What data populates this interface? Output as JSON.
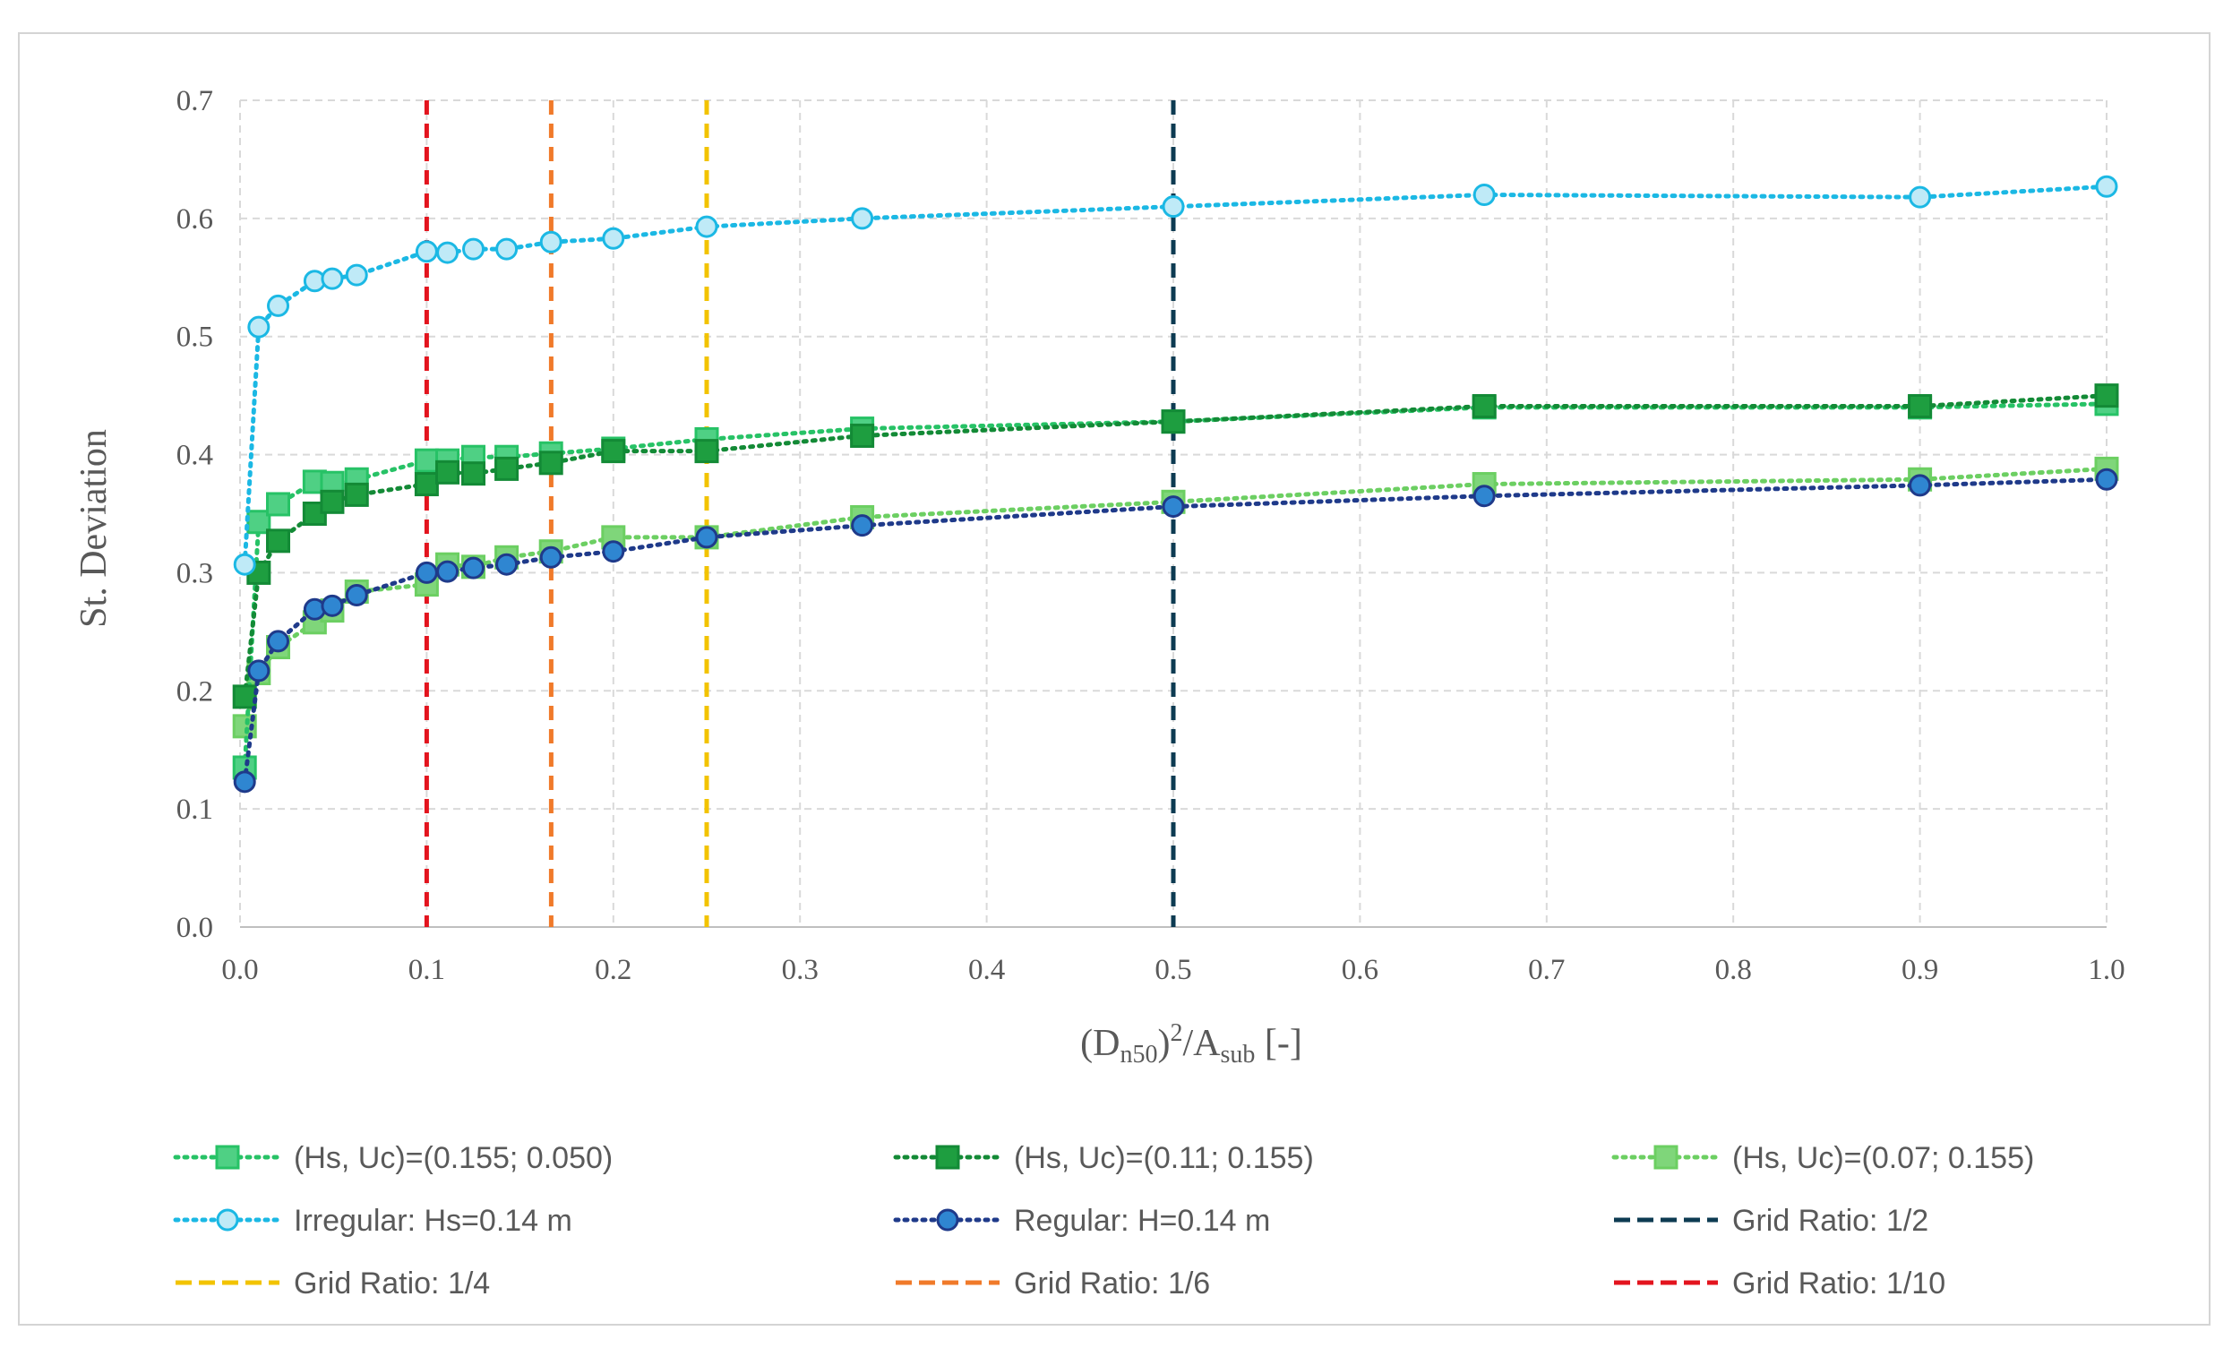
{
  "chart_data": {
    "type": "line",
    "title": "",
    "ylabel": "St. Deviation",
    "xlabel_parts": {
      "open": "(D",
      "sub1": "n50",
      "mid": ")",
      "sup": "2",
      "slash": "/A",
      "sub2": "sub",
      "end": " [-]"
    },
    "xlim": [
      0.0,
      1.0
    ],
    "ylim": [
      0.0,
      0.7
    ],
    "x_ticks": [
      "0.0",
      "0.1",
      "0.2",
      "0.3",
      "0.4",
      "0.5",
      "0.6",
      "0.7",
      "0.8",
      "0.9",
      "1.0"
    ],
    "y_ticks": [
      "0.0",
      "0.1",
      "0.2",
      "0.3",
      "0.4",
      "0.5",
      "0.6",
      "0.7"
    ],
    "grid": true,
    "legend_position": "bottom",
    "series": [
      {
        "name": "(Hs, Uc)=(0.155; 0.050)",
        "color": "#27c266",
        "marker": "square",
        "fill": "#4fd084",
        "dot": "dotted",
        "x": [
          0.0025,
          0.01,
          0.0204,
          0.04,
          0.0494,
          0.0625,
          0.1,
          0.1111,
          0.125,
          0.1428,
          0.1666,
          0.2,
          0.25,
          0.3333,
          0.5,
          0.6666,
          0.9,
          1.0
        ],
        "y": [
          0.135,
          0.343,
          0.358,
          0.377,
          0.376,
          0.379,
          0.395,
          0.395,
          0.398,
          0.398,
          0.401,
          0.405,
          0.413,
          0.422,
          0.428,
          0.44,
          0.44,
          0.443
        ]
      },
      {
        "name": "(Hs, Uc)=(0.11; 0.155)",
        "color": "#138a36",
        "marker": "square",
        "fill": "#1e9e40",
        "dot": "dotted",
        "x": [
          0.0025,
          0.01,
          0.0204,
          0.04,
          0.0494,
          0.0625,
          0.1,
          0.1111,
          0.125,
          0.1428,
          0.1666,
          0.2,
          0.25,
          0.3333,
          0.5,
          0.6666,
          0.9,
          1.0
        ],
        "y": [
          0.195,
          0.3,
          0.327,
          0.35,
          0.36,
          0.366,
          0.375,
          0.385,
          0.384,
          0.388,
          0.393,
          0.403,
          0.403,
          0.416,
          0.428,
          0.441,
          0.441,
          0.45
        ]
      },
      {
        "name": "(Hs, Uc)=(0.07; 0.155)",
        "color": "#6ccf62",
        "marker": "square",
        "fill": "#7fd67a",
        "dot": "dotted",
        "x": [
          0.0025,
          0.01,
          0.0204,
          0.04,
          0.0494,
          0.0625,
          0.1,
          0.1111,
          0.125,
          0.1428,
          0.1666,
          0.2,
          0.25,
          0.3333,
          0.5,
          0.6666,
          0.9,
          1.0
        ],
        "y": [
          0.17,
          0.215,
          0.237,
          0.258,
          0.268,
          0.284,
          0.29,
          0.307,
          0.305,
          0.313,
          0.318,
          0.33,
          0.33,
          0.347,
          0.36,
          0.375,
          0.379,
          0.388
        ]
      },
      {
        "name": "Irregular: Hs=0.14 m",
        "color": "#1bb8e4",
        "marker": "circle",
        "fill": "#bfeaf7",
        "dot": "dotted",
        "x": [
          0.0025,
          0.01,
          0.0204,
          0.04,
          0.0494,
          0.0625,
          0.1,
          0.1111,
          0.125,
          0.1428,
          0.1666,
          0.2,
          0.25,
          0.3333,
          0.5,
          0.6666,
          0.9,
          1.0
        ],
        "y": [
          0.307,
          0.508,
          0.526,
          0.547,
          0.549,
          0.552,
          0.572,
          0.571,
          0.574,
          0.574,
          0.58,
          0.583,
          0.593,
          0.6,
          0.61,
          0.62,
          0.618,
          0.627
        ]
      },
      {
        "name": "Regular: H=0.14 m",
        "color": "#1f3a8a",
        "marker": "circle",
        "fill": "#2f86d1",
        "dot": "dotted",
        "x": [
          0.0025,
          0.01,
          0.0204,
          0.04,
          0.0494,
          0.0625,
          0.1,
          0.1111,
          0.125,
          0.1428,
          0.1666,
          0.2,
          0.25,
          0.3333,
          0.5,
          0.6666,
          0.9,
          1.0
        ],
        "y": [
          0.123,
          0.217,
          0.242,
          0.269,
          0.272,
          0.281,
          0.3,
          0.301,
          0.304,
          0.307,
          0.313,
          0.318,
          0.33,
          0.34,
          0.356,
          0.365,
          0.374,
          0.379
        ]
      }
    ],
    "vlines": [
      {
        "name": "Grid Ratio: 1/2",
        "x": 0.5,
        "color": "#0d3b52"
      },
      {
        "name": "Grid Ratio: 1/4",
        "x": 0.25,
        "color": "#f2c300"
      },
      {
        "name": "Grid Ratio: 1/6",
        "x": 0.1667,
        "color": "#f07a2a"
      },
      {
        "name": "Grid Ratio: 1/10",
        "x": 0.1,
        "color": "#e3141e"
      }
    ]
  }
}
